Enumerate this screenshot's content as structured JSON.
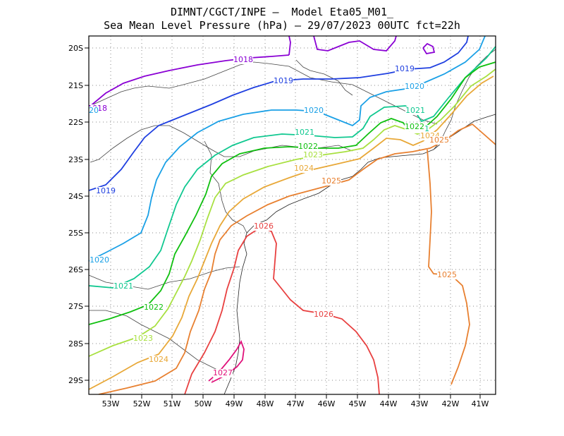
{
  "title_line1": "DIMNT/CGCT/INPE –  Model Eta05_M01_",
  "title_line2": "Sea Mean Level Pressure (hPa) – 29/07/2023 00UTC fct=22h",
  "map": {
    "lon_range": [
      -53.6,
      -40.6
    ],
    "lat_range": [
      -29.4,
      -19.7
    ],
    "x_ticks": [
      "53W",
      "52W",
      "51W",
      "50W",
      "49W",
      "48W",
      "47W",
      "46W",
      "45W",
      "44W",
      "43W",
      "42W",
      "41W"
    ],
    "y_ticks": [
      "20S",
      "21S",
      "22S",
      "23S",
      "24S",
      "25S",
      "26S",
      "27S",
      "28S",
      "29S"
    ]
  },
  "contours": {
    "1018": {
      "color": "#8a00d4"
    },
    "1019": {
      "color": "#1f3fe0"
    },
    "1020": {
      "color": "#1aa0e6"
    },
    "1021": {
      "color": "#10c890"
    },
    "1022": {
      "color": "#10c010"
    },
    "1023": {
      "color": "#a8e040"
    },
    "1024": {
      "color": "#e8a838"
    },
    "1025": {
      "color": "#e88030"
    },
    "1026": {
      "color": "#e84040"
    },
    "1027": {
      "color": "#e0107a"
    }
  },
  "labels": [
    "1018",
    "1018",
    "1019",
    "1019",
    "1019",
    "1020",
    "1020",
    "1020",
    "1020",
    "1021",
    "1021",
    "1021",
    "1021",
    "1022",
    "1022",
    "1022",
    "1023",
    "1023",
    "1024",
    "1024",
    "1024",
    "1025",
    "1025",
    "1025",
    "1026",
    "1026",
    "1027"
  ]
}
